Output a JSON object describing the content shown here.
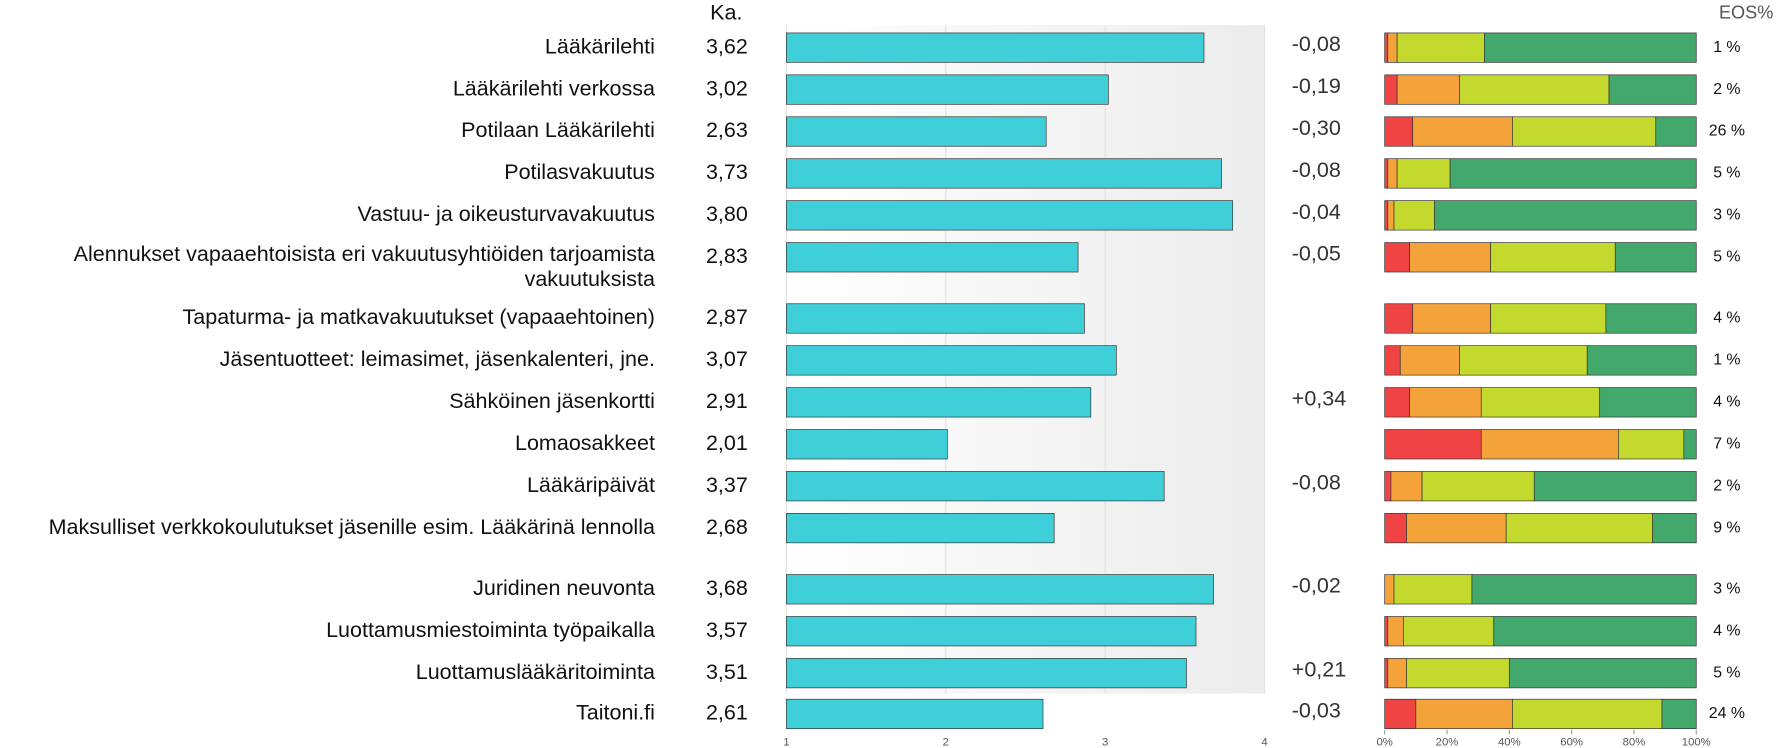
{
  "chart_data": {
    "type": "bar",
    "mean_header": "Ka.",
    "eos_header": "EOS%",
    "categories": [
      "Lääkärilehti",
      "Lääkärilehti verkossa",
      "Potilaan Lääkärilehti",
      "Potilasvakuutus",
      "Vastuu- ja oikeusturvavakuutus",
      "Alennukset vapaaehtoisista eri vakuutusyhtiöiden tarjoamista vakuutuksista",
      "Tapaturma- ja matkavakuutukset (vapaaehtoinen)",
      "Jäsentuotteet: leimasimet, jäsenkalenteri, jne.",
      "Sähköinen jäsenkortti",
      "Lomaosakkeet",
      "Lääkäripäivät",
      "Maksulliset verkkokoulutukset jäsenille esim. Lääkärinä lennolla",
      "Juridinen neuvonta",
      "Luottamusmiestoiminta työpaikalla",
      "Luottamuslääkäritoiminta",
      "Taitoni.fi"
    ],
    "values": [
      3.62,
      3.02,
      2.63,
      3.73,
      3.8,
      2.83,
      2.87,
      3.07,
      2.91,
      2.01,
      3.37,
      2.68,
      3.68,
      3.57,
      3.51,
      2.61
    ],
    "value_labels": [
      "3,62",
      "3,02",
      "2,63",
      "3,73",
      "3,80",
      "2,83",
      "2,87",
      "3,07",
      "2,91",
      "2,01",
      "3,37",
      "2,68",
      "3,68",
      "3,57",
      "3,51",
      "2,61"
    ],
    "color": "#3ecfd8",
    "xlim": [
      1,
      4
    ],
    "xticks": [
      1,
      2,
      3,
      4
    ],
    "change": {
      "values": [
        -0.08,
        -0.19,
        -0.3,
        -0.08,
        -0.04,
        -0.05,
        null,
        null,
        0.34,
        null,
        -0.08,
        null,
        -0.02,
        null,
        0.21,
        -0.03
      ],
      "value_labels": [
        "-0,08",
        "-0,19",
        "-0,30",
        "-0,08",
        "-0,04",
        "-0,05",
        null,
        null,
        "+0,34",
        null,
        "-0,08",
        null,
        "-0,02",
        null,
        "+0,21",
        "-0,03"
      ]
    },
    "distribution": {
      "xlim": [
        0,
        100
      ],
      "xticks": [
        {
          "value": 0,
          "label": "0%"
        },
        {
          "value": 20,
          "label": "20%"
        },
        {
          "value": 40,
          "label": "40%"
        },
        {
          "value": 60,
          "label": "60%"
        },
        {
          "value": 80,
          "label": "80%"
        },
        {
          "value": 100,
          "label": "100%"
        }
      ],
      "series": [
        {
          "color": "#f04444",
          "values": [
            1,
            4,
            9,
            1,
            1,
            8,
            9,
            5,
            8,
            31,
            2,
            7,
            0,
            1,
            1,
            10
          ]
        },
        {
          "color": "#f4a23a",
          "values": [
            3,
            20,
            32,
            3,
            2,
            26,
            25,
            19,
            23,
            44,
            10,
            32,
            3,
            5,
            6,
            31
          ]
        },
        {
          "color": "#c4d92e",
          "values": [
            28,
            48,
            46,
            17,
            13,
            40,
            37,
            41,
            38,
            21,
            36,
            47,
            25,
            29,
            33,
            48
          ]
        },
        {
          "color": "#43a86b",
          "values": [
            68,
            28,
            13,
            79,
            84,
            26,
            29,
            35,
            31,
            4,
            52,
            14,
            72,
            65,
            60,
            11
          ]
        }
      ]
    },
    "eos": {
      "values": [
        1,
        2,
        26,
        5,
        3,
        5,
        4,
        1,
        4,
        7,
        2,
        9,
        3,
        4,
        5,
        24
      ],
      "value_labels": [
        "1 %",
        "2 %",
        "26 %",
        "5 %",
        "3 %",
        "5 %",
        "4 %",
        "1 %",
        "4 %",
        "7 %",
        "2 %",
        "9 %",
        "3 %",
        "4 %",
        "5 %",
        "24 %"
      ]
    }
  }
}
